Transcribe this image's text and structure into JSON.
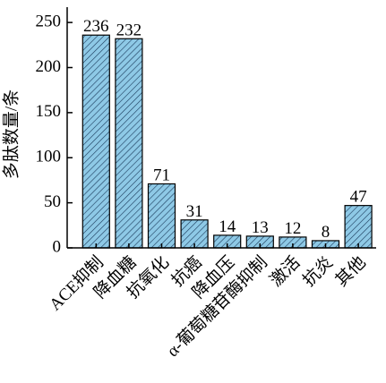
{
  "chart_data": {
    "type": "bar",
    "ylabel": "多肽数量/条",
    "categories": [
      "ACE抑制",
      "降血糖",
      "抗氧化",
      "抗癌",
      "降血压",
      "α-葡萄糖苷酶抑制",
      "激活",
      "抗炎",
      "其他"
    ],
    "values": [
      236,
      232,
      71,
      31,
      14,
      13,
      12,
      8,
      47
    ],
    "color": "#8ec9e6",
    "ylim": [
      0,
      267
    ],
    "yticks": [
      0,
      50,
      100,
      150,
      200,
      250
    ]
  }
}
